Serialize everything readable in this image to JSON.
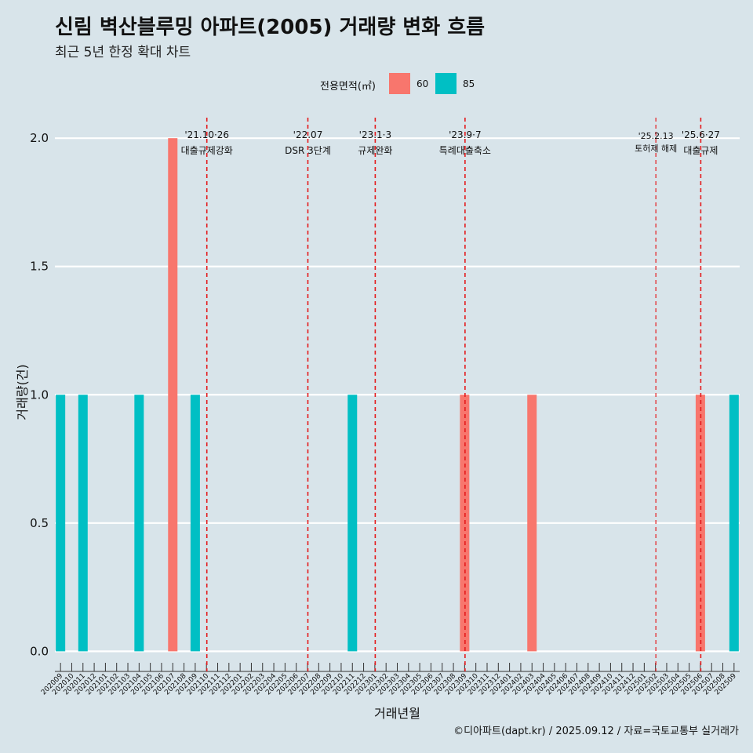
{
  "header": {
    "title": "신림 벽산블루밍 아파트(2005) 거래량 변화 흐름",
    "subtitle": "최근 5년 한정 확대 차트"
  },
  "legend": {
    "title": "전용면적(㎡)",
    "items": [
      {
        "label": "60",
        "color": "#F8766D"
      },
      {
        "label": "85",
        "color": "#00BFC4"
      }
    ]
  },
  "caption": "©디아파트(dapt.kr) / 2025.09.12 / 자료=국토교통부 실거래가",
  "chart_data": {
    "type": "bar",
    "title": "신림 벽산블루밍 아파트(2005) 거래량 변화 흐름",
    "xlabel": "거래년월",
    "ylabel": "거래량(건)",
    "ylim": [
      -0.06,
      2.08
    ],
    "yticks": [
      0.0,
      0.5,
      1.0,
      1.5,
      2.0
    ],
    "ytick_labels": [
      "0.0",
      "0.5",
      "1.0",
      "1.5",
      "2.0"
    ],
    "categories": [
      "202009",
      "202010",
      "202011",
      "202012",
      "202101",
      "202102",
      "202103",
      "202104",
      "202105",
      "202106",
      "202107",
      "202108",
      "202109",
      "202110",
      "202111",
      "202112",
      "202201",
      "202202",
      "202203",
      "202204",
      "202205",
      "202206",
      "202207",
      "202208",
      "202209",
      "202210",
      "202211",
      "202212",
      "202301",
      "202302",
      "202303",
      "202304",
      "202305",
      "202306",
      "202307",
      "202308",
      "202309",
      "202310",
      "202311",
      "202312",
      "202401",
      "202402",
      "202403",
      "202404",
      "202405",
      "202406",
      "202407",
      "202408",
      "202409",
      "202410",
      "202411",
      "202412",
      "202501",
      "202502",
      "202503",
      "202504",
      "202505",
      "202506",
      "202507",
      "202508",
      "202509"
    ],
    "series": [
      {
        "name": "60",
        "color": "#F8766D",
        "points": [
          {
            "x": "202107",
            "y": 2
          },
          {
            "x": "202309",
            "y": 1
          },
          {
            "x": "202403",
            "y": 1
          },
          {
            "x": "202506",
            "y": 1
          }
        ]
      },
      {
        "name": "85",
        "color": "#00BFC4",
        "points": [
          {
            "x": "202009",
            "y": 1
          },
          {
            "x": "202011",
            "y": 1
          },
          {
            "x": "202104",
            "y": 1
          },
          {
            "x": "202109",
            "y": 1
          },
          {
            "x": "202211",
            "y": 1
          },
          {
            "x": "202509",
            "y": 1
          }
        ]
      }
    ],
    "annotations": [
      {
        "x": "202110",
        "date": "'21.10·26",
        "label": "대출규제강화",
        "small": false
      },
      {
        "x": "202207",
        "date": "'22.07",
        "label": "DSR 3단계",
        "small": false
      },
      {
        "x": "202301",
        "date": "'23.1·3",
        "label": "규제완화",
        "small": false
      },
      {
        "x": "202309",
        "date": "'23.9·7",
        "label": "특례대출축소",
        "small": false
      },
      {
        "x": "202502",
        "date": "'25.2.13",
        "label": "토허제 해제",
        "small": true
      },
      {
        "x": "202506",
        "date": "'25.6·27",
        "label": "대출규제",
        "small": false
      }
    ]
  }
}
